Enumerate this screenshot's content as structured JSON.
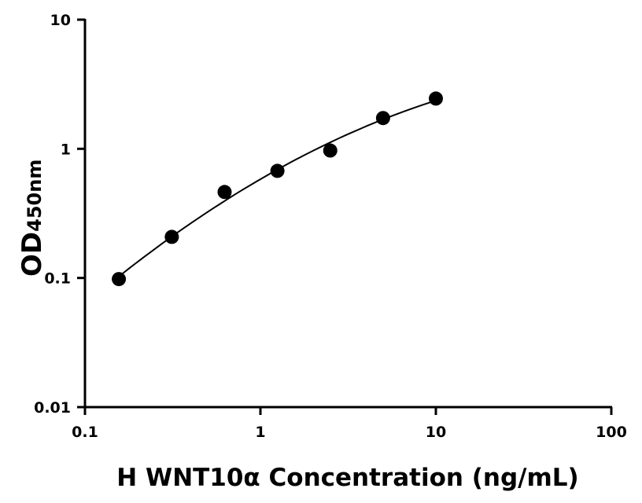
{
  "chart_data": {
    "type": "scatter",
    "xlabel": "H WNT10α Concentration (ng/mL)",
    "ylabel_main": "OD",
    "ylabel_sub": "450nm",
    "x_scale": "log",
    "y_scale": "log",
    "xlim": [
      0.1,
      100
    ],
    "ylim": [
      0.01,
      10
    ],
    "x_ticks": [
      "0.1",
      "1",
      "10",
      "100"
    ],
    "y_ticks": [
      "0.01",
      "0.1",
      "1",
      "10"
    ],
    "grid": false,
    "fit_line": true,
    "points": [
      {
        "x": 0.156,
        "y": 0.098
      },
      {
        "x": 0.3125,
        "y": 0.208
      },
      {
        "x": 0.625,
        "y": 0.463
      },
      {
        "x": 1.25,
        "y": 0.675
      },
      {
        "x": 2.5,
        "y": 0.97
      },
      {
        "x": 5,
        "y": 1.73
      },
      {
        "x": 10,
        "y": 2.45
      }
    ],
    "colors": {
      "marker": "#000000",
      "line": "#000000"
    }
  }
}
